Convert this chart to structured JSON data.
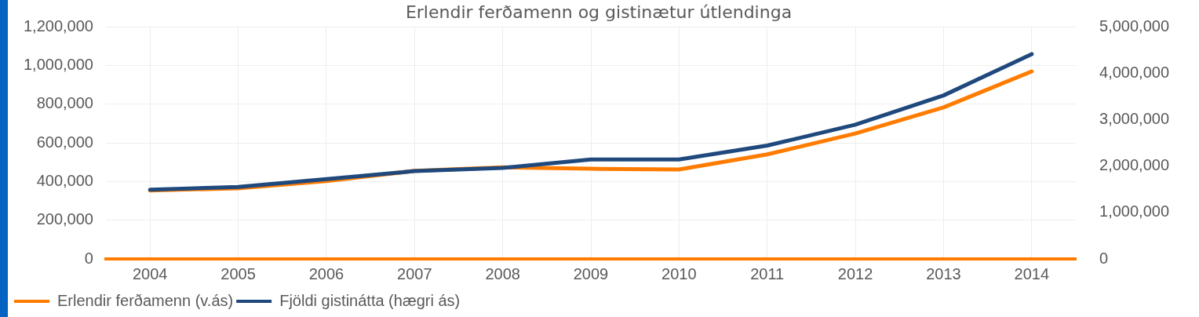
{
  "chart_data": {
    "type": "line",
    "title": "Erlendir ferðamenn og gistinætur útlendinga",
    "categories": [
      "2004",
      "2005",
      "2006",
      "2007",
      "2008",
      "2009",
      "2010",
      "2011",
      "2012",
      "2013",
      "2014"
    ],
    "series": [
      {
        "name": "Erlendir ferðamenn (v.ás)",
        "color": "#ff7c00",
        "values": [
          354000,
          365000,
          402000,
          455000,
          473000,
          466000,
          462000,
          540000,
          648000,
          783000,
          969000
        ]
      },
      {
        "name": "Fjöldi gistinátta (hægri ás)",
        "color": "#1f497d",
        "axis": "y2",
        "values": [
          1490000,
          1550000,
          1720000,
          1890000,
          1960000,
          2140000,
          2140000,
          2440000,
          2890000,
          3520000,
          4410000
        ]
      }
    ],
    "ylim": [
      0,
      1200000
    ],
    "yticks": [
      0,
      {
        "value": 200000,
        "label": "200,000"
      },
      {
        "value": 400000,
        "label": "400,000"
      },
      {
        "value": 600000,
        "label": "600,000"
      },
      {
        "value": 800000,
        "label": "800,000"
      },
      {
        "value": 1000000,
        "label": "1,000,000"
      },
      {
        "value": 1200000,
        "label": "1,200,000"
      }
    ],
    "y2lim": [
      0,
      5000000
    ],
    "y2ticks": [
      0,
      {
        "value": 1000000,
        "label": "1,000,000"
      },
      {
        "value": 2000000,
        "label": "2,000,000"
      },
      {
        "value": 3000000,
        "label": "3,000,000"
      },
      {
        "value": 4000000,
        "label": "4,000,000"
      },
      {
        "value": 5000000,
        "label": "5,000,000"
      }
    ],
    "grid": true,
    "legend": "bottom",
    "marker": "none",
    "line_style": "solid"
  }
}
